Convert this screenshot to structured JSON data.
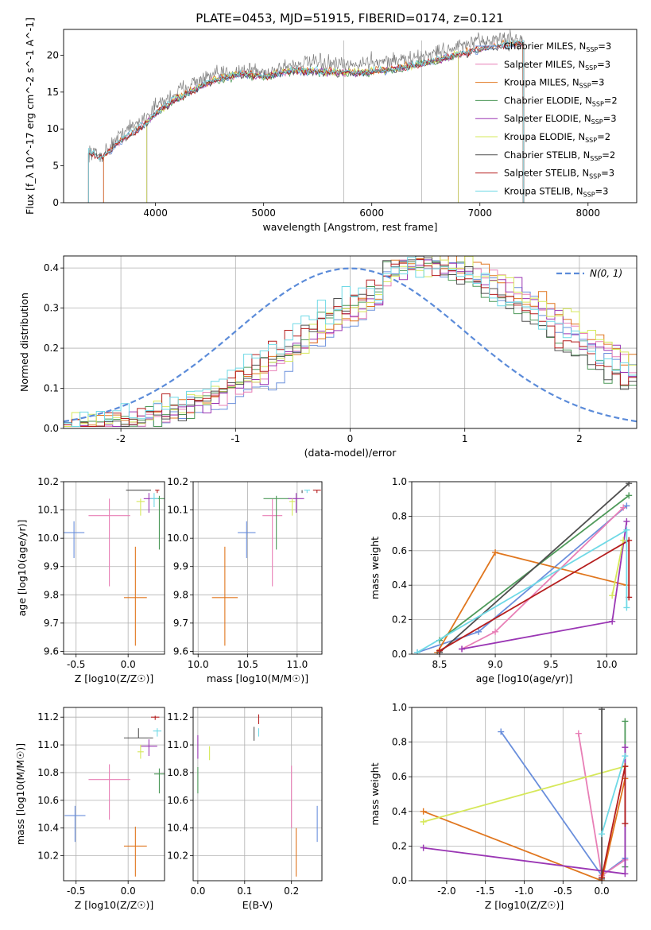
{
  "figure_title": "PLATE=0453, MJD=51915, FIBERID=0174, z=0.121",
  "colors": {
    "Chabrier MILES": "#6a8fdc",
    "Salpeter MILES": "#e87fb6",
    "Kroupa MILES": "#e0761e",
    "Chabrier ELODIE": "#4e9a5a",
    "Salpeter ELODIE": "#9a36b4",
    "Kroupa ELODIE": "#d6e85a",
    "Chabrier STELIB": "#505050",
    "Salpeter STELIB": "#b51d1d",
    "Kroupa STELIB": "#6fd9e6",
    "normal_curve": "#5b8bd9"
  },
  "chart_data": [
    {
      "id": "spectrum",
      "type": "line",
      "title": "PLATE=0453, MJD=51915, FIBERID=0174, z=0.121",
      "xlabel": "wavelength [Angstrom, rest frame]",
      "ylabel": "Flux [f_λ 10^-17 erg cm^-2 s^-1 A^-1]",
      "xlim": [
        3150,
        8450
      ],
      "ylim": [
        0,
        23.5
      ],
      "xticks": [
        4000,
        5000,
        6000,
        7000,
        8000
      ],
      "yticks": [
        0,
        5,
        10,
        15,
        20
      ],
      "grid": false,
      "legend_position": "top-right",
      "legend": [
        {
          "label": "Chabrier MILES, N_SSP=3"
        },
        {
          "label": "Salpeter MILES, N_SSP=3"
        },
        {
          "label": "Kroupa MILES, N_SSP=3"
        },
        {
          "label": "Chabrier ELODIE, N_SSP=2"
        },
        {
          "label": "Salpeter ELODIE, N_SSP=3"
        },
        {
          "label": "Kroupa ELODIE, N_SSP=2"
        },
        {
          "label": "Chabrier STELIB, N_SSP=2"
        },
        {
          "label": "Salpeter STELIB, N_SSP=3"
        },
        {
          "label": "Kroupa STELIB, N_SSP=3"
        }
      ],
      "data_observed": {
        "x": [
          3380,
          3500,
          3700,
          3900,
          4000,
          4100,
          4300,
          4500,
          4700,
          4900,
          5000,
          5200,
          5400,
          5600,
          5800,
          6000,
          6200,
          6400,
          6500,
          6700,
          6900,
          7000,
          7200,
          7400
        ],
        "y": [
          7,
          6.3,
          9.5,
          11.5,
          13,
          14,
          16,
          17,
          17.8,
          18,
          17.5,
          18.5,
          19,
          18.8,
          18.5,
          19.2,
          19.3,
          19.5,
          20,
          20.8,
          21.5,
          21.8,
          22.3,
          22
        ]
      },
      "model_continuum": {
        "x": [
          3380,
          3500,
          3700,
          3900,
          4000,
          4200,
          4500,
          4800,
          5000,
          5300,
          5600,
          5900,
          6200,
          6500,
          6800,
          7100,
          7400
        ],
        "y": [
          6.8,
          6,
          8.5,
          10.5,
          12,
          14,
          16.3,
          17.4,
          17,
          17.8,
          17.6,
          17.5,
          18,
          18.8,
          20,
          21,
          21.5
        ]
      }
    },
    {
      "id": "residuals",
      "type": "line",
      "xlabel": "(data-model)/error",
      "ylabel": "Normed distribution",
      "xlim": [
        -2.5,
        2.5
      ],
      "ylim": [
        0,
        0.43
      ],
      "xticks": [
        -2,
        -1,
        0,
        1,
        2
      ],
      "yticks": [
        0.0,
        0.1,
        0.2,
        0.3,
        0.4
      ],
      "grid": true,
      "legend_position": "top-right",
      "legend": [
        {
          "label": "N(0, 1)"
        }
      ],
      "reference_curve": "gaussian mean 0 sigma 1"
    },
    {
      "id": "age-vs-Z",
      "type": "scatter",
      "xlabel": "Z [log10(Z/Z☉)]",
      "ylabel": "age [log10(age/yr)]",
      "xlim": [
        -0.62,
        0.35
      ],
      "ylim": [
        9.59,
        10.2
      ],
      "xticks": [
        -0.5,
        0.0
      ],
      "yticks": [
        9.6,
        9.7,
        9.8,
        9.9,
        10.0,
        10.1,
        10.2
      ],
      "grid": true,
      "points": [
        {
          "series": "Chabrier MILES",
          "x": -0.52,
          "y": 10.02,
          "xerr": 0.1,
          "yerr_lo": 0.09,
          "yerr_hi": 0.04
        },
        {
          "series": "Salpeter MILES",
          "x": -0.18,
          "y": 10.08,
          "xerr": 0.2,
          "yerr_lo": 0.25,
          "yerr_hi": 0.06
        },
        {
          "series": "Kroupa MILES",
          "x": 0.07,
          "y": 9.79,
          "xerr": 0.11,
          "yerr_lo": 0.17,
          "yerr_hi": 0.18
        },
        {
          "series": "Chabrier ELODIE",
          "x": 0.3,
          "y": 10.14,
          "xerr": 0.05,
          "yerr_lo": 0.18,
          "yerr_hi": 0.01
        },
        {
          "series": "Salpeter ELODIE",
          "x": 0.2,
          "y": 10.14,
          "xerr": 0.05,
          "yerr_lo": 0.05,
          "yerr_hi": 0.02
        },
        {
          "series": "Kroupa ELODIE",
          "x": 0.12,
          "y": 10.13,
          "xerr": 0.04,
          "yerr_lo": 0.05,
          "yerr_hi": 0.01
        },
        {
          "series": "Chabrier STELIB",
          "x": 0.1,
          "y": 10.17,
          "xerr": 0.12,
          "yerr_lo": 0.0,
          "yerr_hi": 0.0
        },
        {
          "series": "Salpeter STELIB",
          "x": 0.28,
          "y": 10.17,
          "xerr": 0.02,
          "yerr_lo": 0.01,
          "yerr_hi": 0.0
        },
        {
          "series": "Kroupa STELIB",
          "x": 0.25,
          "y": 10.14,
          "xerr": 0.04,
          "yerr_lo": 0.03,
          "yerr_hi": 0.02
        }
      ]
    },
    {
      "id": "age-vs-mass",
      "type": "scatter",
      "xlabel": "mass [log10(M/M☉)]",
      "ylabel": "",
      "xlim": [
        9.95,
        11.25
      ],
      "ylim": [
        9.59,
        10.2
      ],
      "xticks": [
        10.0,
        10.5,
        11.0
      ],
      "yticks": [
        9.6,
        9.7,
        9.8,
        9.9,
        10.0,
        10.1,
        10.2
      ],
      "grid": true,
      "points": [
        {
          "series": "Chabrier MILES",
          "x": 10.49,
          "y": 10.02,
          "xerr": 0.09,
          "yerr_lo": 0.09,
          "yerr_hi": 0.04
        },
        {
          "series": "Salpeter MILES",
          "x": 10.75,
          "y": 10.08,
          "xerr": 0.1,
          "yerr_lo": 0.25,
          "yerr_hi": 0.06
        },
        {
          "series": "Kroupa MILES",
          "x": 10.27,
          "y": 9.79,
          "xerr": 0.13,
          "yerr_lo": 0.17,
          "yerr_hi": 0.18
        },
        {
          "series": "Chabrier ELODIE",
          "x": 10.79,
          "y": 10.14,
          "xerr": 0.13,
          "yerr_lo": 0.18,
          "yerr_hi": 0.01
        },
        {
          "series": "Salpeter ELODIE",
          "x": 10.99,
          "y": 10.14,
          "xerr": 0.08,
          "yerr_lo": 0.05,
          "yerr_hi": 0.02
        },
        {
          "series": "Kroupa ELODIE",
          "x": 10.95,
          "y": 10.13,
          "xerr": 0.03,
          "yerr_lo": 0.05,
          "yerr_hi": 0.01
        },
        {
          "series": "Chabrier STELIB",
          "x": 11.05,
          "y": 10.17,
          "xerr": 0.0,
          "yerr_lo": 0.01,
          "yerr_hi": 0.0
        },
        {
          "series": "Salpeter STELIB",
          "x": 11.2,
          "y": 10.17,
          "xerr": 0.04,
          "yerr_lo": 0.01,
          "yerr_hi": 0.0
        },
        {
          "series": "Kroupa STELIB",
          "x": 11.1,
          "y": 10.17,
          "xerr": 0.03,
          "yerr_lo": 0.01,
          "yerr_hi": 0.0
        }
      ]
    },
    {
      "id": "massweight-vs-age",
      "type": "line",
      "xlabel": "age [log10(age/yr)]",
      "ylabel": "mass weight",
      "xlim": [
        8.25,
        10.27
      ],
      "ylim": [
        0,
        1
      ],
      "xticks": [
        8.5,
        9.0,
        9.5,
        10.0
      ],
      "yticks": [
        0.0,
        0.2,
        0.4,
        0.6,
        0.8,
        1.0
      ],
      "grid": true,
      "series": [
        {
          "key": "Chabrier MILES",
          "points": [
            [
              8.3,
              0.01
            ],
            [
              8.85,
              0.13
            ],
            [
              10.18,
              0.86
            ]
          ]
        },
        {
          "key": "Salpeter MILES",
          "points": [
            [
              8.7,
              0.03
            ],
            [
              9.0,
              0.13
            ],
            [
              10.15,
              0.85
            ]
          ]
        },
        {
          "key": "Kroupa MILES",
          "points": [
            [
              8.48,
              0.01
            ],
            [
              9.0,
              0.59
            ],
            [
              10.18,
              0.4
            ]
          ]
        },
        {
          "key": "Chabrier ELODIE",
          "points": [
            [
              8.5,
              0.08
            ],
            [
              10.2,
              0.92
            ]
          ]
        },
        {
          "key": "Salpeter ELODIE",
          "points": [
            [
              8.7,
              0.03
            ],
            [
              10.05,
              0.19
            ],
            [
              10.18,
              0.77
            ]
          ]
        },
        {
          "key": "Kroupa ELODIE",
          "points": [
            [
              10.05,
              0.34
            ],
            [
              10.15,
              0.66
            ]
          ]
        },
        {
          "key": "Chabrier STELIB",
          "points": [
            [
              8.5,
              0.01
            ],
            [
              10.2,
              0.99
            ]
          ]
        },
        {
          "key": "Salpeter STELIB",
          "points": [
            [
              8.5,
              0.02
            ],
            [
              10.2,
              0.66
            ],
            [
              10.2,
              0.33
            ]
          ]
        },
        {
          "key": "Kroupa STELIB",
          "points": [
            [
              8.3,
              0.01
            ],
            [
              10.18,
              0.72
            ],
            [
              10.18,
              0.27
            ]
          ]
        }
      ]
    },
    {
      "id": "mass-vs-Z",
      "type": "scatter",
      "xlabel": "Z [log10(Z/Z☉)]",
      "ylabel": "mass [log10(M/M☉)]",
      "xlim": [
        -0.62,
        0.35
      ],
      "ylim": [
        10.02,
        11.27
      ],
      "xticks": [
        -0.5,
        0.0
      ],
      "yticks": [
        10.2,
        10.4,
        10.6,
        10.8,
        11.0,
        11.2
      ],
      "grid": true,
      "points": [
        {
          "series": "Chabrier MILES",
          "x": -0.51,
          "y": 10.49,
          "xerr": 0.1,
          "yerr_lo": 0.19,
          "yerr_hi": 0.07
        },
        {
          "series": "Salpeter MILES",
          "x": -0.18,
          "y": 10.75,
          "xerr": 0.2,
          "yerr_lo": 0.29,
          "yerr_hi": 0.11
        },
        {
          "series": "Kroupa MILES",
          "x": 0.07,
          "y": 10.27,
          "xerr": 0.11,
          "yerr_lo": 0.22,
          "yerr_hi": 0.14
        },
        {
          "series": "Chabrier ELODIE",
          "x": 0.3,
          "y": 10.79,
          "xerr": 0.05,
          "yerr_lo": 0.14,
          "yerr_hi": 0.04
        },
        {
          "series": "Salpeter ELODIE",
          "x": 0.2,
          "y": 10.99,
          "xerr": 0.08,
          "yerr_lo": 0.07,
          "yerr_hi": 0.05
        },
        {
          "series": "Kroupa ELODIE",
          "x": 0.12,
          "y": 10.95,
          "xerr": 0.03,
          "yerr_lo": 0.05,
          "yerr_hi": 0.05
        },
        {
          "series": "Chabrier STELIB",
          "x": 0.1,
          "y": 11.05,
          "xerr": 0.14,
          "yerr_lo": 0.0,
          "yerr_hi": 0.07
        },
        {
          "series": "Salpeter STELIB",
          "x": 0.26,
          "y": 11.2,
          "xerr": 0.04,
          "yerr_lo": 0.02,
          "yerr_hi": 0.01
        },
        {
          "series": "Kroupa STELIB",
          "x": 0.28,
          "y": 11.1,
          "xerr": 0.04,
          "yerr_lo": 0.04,
          "yerr_hi": 0.02
        }
      ]
    },
    {
      "id": "mass-vs-EBV",
      "type": "scatter",
      "xlabel": "E(B-V)",
      "ylabel": "",
      "xlim": [
        -0.01,
        0.265
      ],
      "ylim": [
        10.02,
        11.27
      ],
      "xticks": [
        0.0,
        0.1,
        0.2
      ],
      "yticks": [
        10.2,
        10.4,
        10.6,
        10.8,
        11.0,
        11.2
      ],
      "grid": true,
      "points": [
        {
          "series": "Chabrier MILES",
          "x": 0.255,
          "y": 10.42,
          "yerr_lo": 0.12,
          "yerr_hi": 0.14
        },
        {
          "series": "Salpeter MILES",
          "x": 0.2,
          "y": 10.62,
          "yerr_lo": 0.22,
          "yerr_hi": 0.23
        },
        {
          "series": "Kroupa MILES",
          "x": 0.21,
          "y": 10.22,
          "yerr_lo": 0.17,
          "yerr_hi": 0.18
        },
        {
          "series": "Chabrier ELODIE",
          "x": 0.0,
          "y": 10.75,
          "yerr_lo": 0.1,
          "yerr_hi": 0.09
        },
        {
          "series": "Salpeter ELODIE",
          "x": 0.0,
          "y": 10.97,
          "yerr_lo": 0.07,
          "yerr_hi": 0.1
        },
        {
          "series": "Kroupa ELODIE",
          "x": 0.025,
          "y": 10.94,
          "yerr_lo": 0.05,
          "yerr_hi": 0.05
        },
        {
          "series": "Chabrier STELIB",
          "x": 0.12,
          "y": 11.08,
          "yerr_lo": 0.05,
          "yerr_hi": 0.05
        },
        {
          "series": "Salpeter STELIB",
          "x": 0.13,
          "y": 11.18,
          "yerr_lo": 0.03,
          "yerr_hi": 0.04
        },
        {
          "series": "Kroupa STELIB",
          "x": 0.13,
          "y": 11.09,
          "yerr_lo": 0.03,
          "yerr_hi": 0.03
        }
      ]
    },
    {
      "id": "massweight-vs-Z",
      "type": "line",
      "xlabel": "Z [log10(Z/Z☉)]",
      "ylabel": "mass weight",
      "xlim": [
        -2.45,
        0.45
      ],
      "ylim": [
        0,
        1
      ],
      "xticks": [
        -2.0,
        -1.5,
        -1.0,
        -0.5,
        0.0
      ],
      "yticks": [
        0.0,
        0.2,
        0.4,
        0.6,
        0.8,
        1.0
      ],
      "grid": true,
      "series": [
        {
          "key": "Chabrier MILES",
          "points": [
            [
              -1.3,
              0.86
            ],
            [
              0.0,
              0.03
            ],
            [
              0.3,
              0.13
            ]
          ]
        },
        {
          "key": "Salpeter MILES",
          "points": [
            [
              -0.3,
              0.85
            ],
            [
              0.0,
              0.03
            ],
            [
              0.3,
              0.12
            ]
          ]
        },
        {
          "key": "Kroupa MILES",
          "points": [
            [
              -2.3,
              0.4
            ],
            [
              0.0,
              0.0
            ],
            [
              0.3,
              0.59
            ]
          ]
        },
        {
          "key": "Chabrier ELODIE",
          "points": [
            [
              0.3,
              0.92
            ],
            [
              0.3,
              0.08
            ]
          ]
        },
        {
          "key": "Salpeter ELODIE",
          "points": [
            [
              -2.3,
              0.19
            ],
            [
              0.3,
              0.04
            ],
            [
              0.3,
              0.77
            ]
          ]
        },
        {
          "key": "Kroupa ELODIE",
          "points": [
            [
              -2.3,
              0.34
            ],
            [
              0.3,
              0.66
            ]
          ]
        },
        {
          "key": "Chabrier STELIB",
          "points": [
            [
              0.0,
              0.99
            ],
            [
              0.0,
              0.01
            ]
          ]
        },
        {
          "key": "Salpeter STELIB",
          "points": [
            [
              0.0,
              0.02
            ],
            [
              0.3,
              0.66
            ],
            [
              0.3,
              0.33
            ]
          ]
        },
        {
          "key": "Kroupa STELIB",
          "points": [
            [
              0.0,
              0.27
            ],
            [
              0.3,
              0.72
            ]
          ]
        }
      ]
    }
  ]
}
